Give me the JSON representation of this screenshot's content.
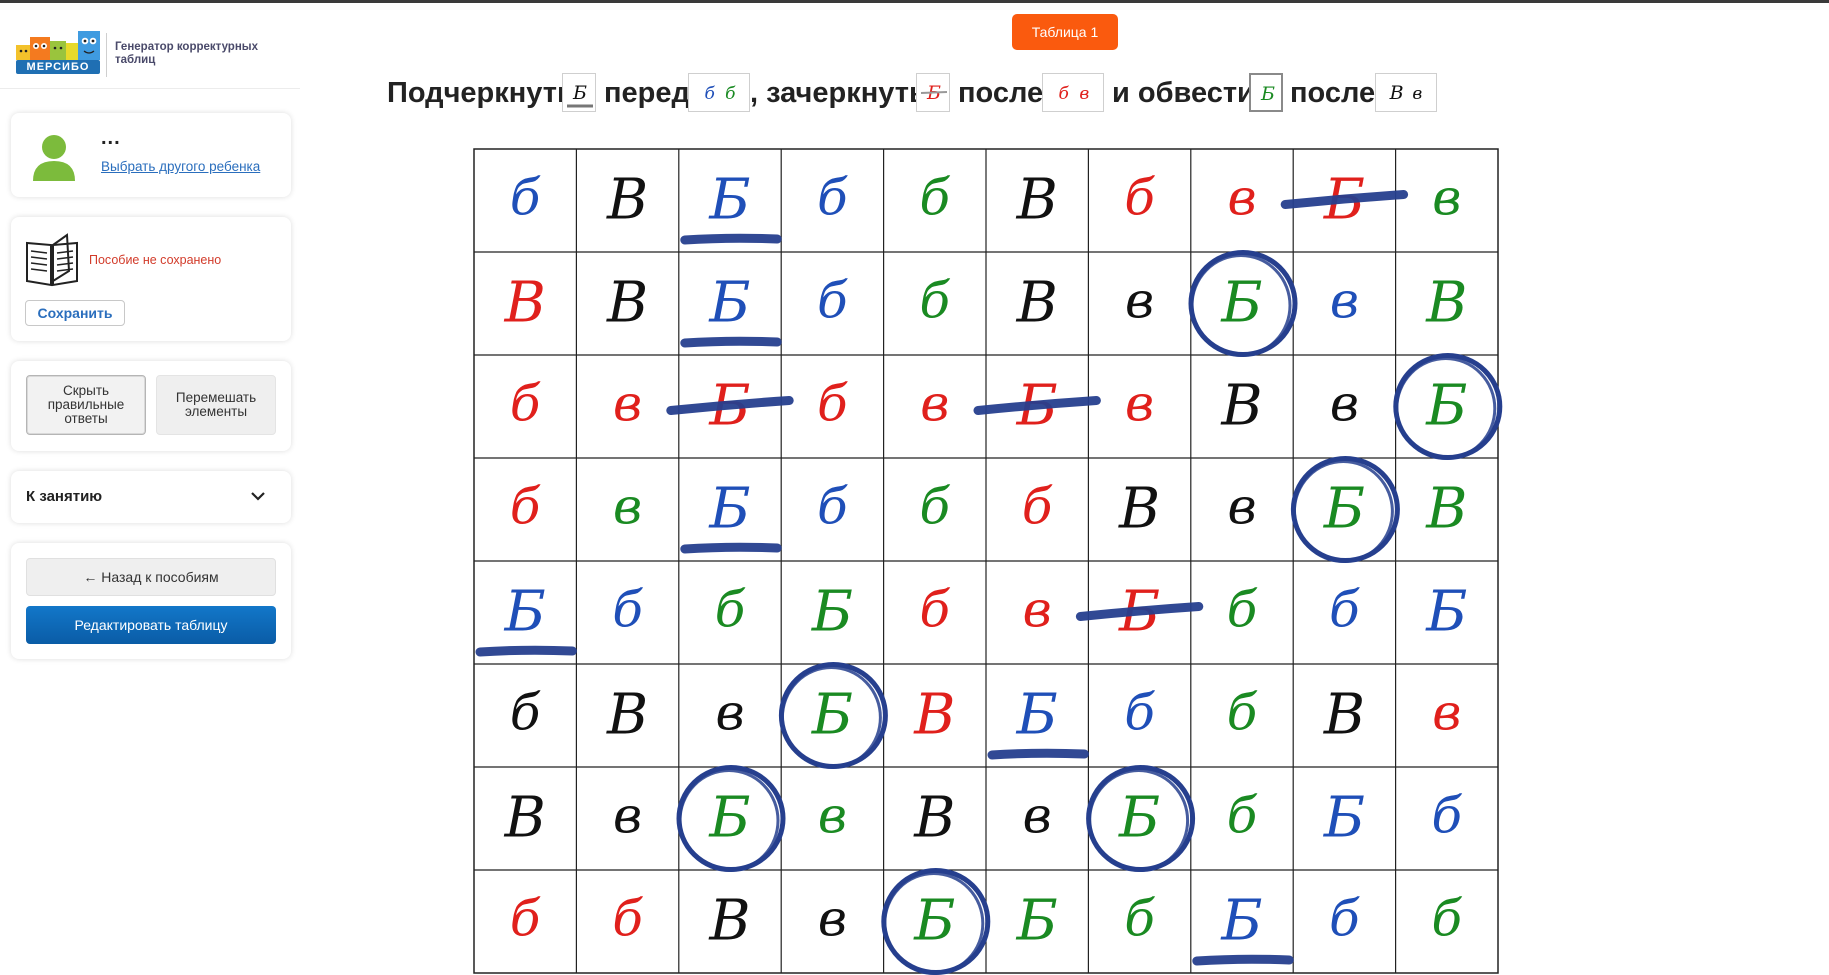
{
  "app": {
    "logo_text": "МЕРСИБО",
    "caption": "Генератор корректурных таблиц"
  },
  "child": {
    "name": "...",
    "change_link": "Выбрать другого ребенка"
  },
  "save_card": {
    "status": "Пособие не сохранено",
    "save_label": "Сохранить"
  },
  "actions": {
    "hide_answers": "Скрыть правильные ответы",
    "shuffle": "Перемешать элементы"
  },
  "lesson": {
    "label": "К занятию",
    "icon": "chevron-down-icon"
  },
  "nav": {
    "back_label": "← Назад к пособиям",
    "edit_label": "Редактировать таблицу"
  },
  "tab": {
    "label": "Таблица 1"
  },
  "instruction": {
    "words": [
      "Подчеркнуть",
      "перед",
      ", зачеркнуть",
      "после",
      "и обвести",
      "после"
    ],
    "chips": [
      {
        "letters": [
          {
            "ch": "Б",
            "color": "black"
          }
        ],
        "mark": "underline"
      },
      {
        "letters": [
          {
            "ch": "б",
            "color": "blue"
          },
          {
            "ch": "б",
            "color": "green"
          }
        ],
        "mark": "none"
      },
      {
        "letters": [
          {
            "ch": "Б",
            "color": "red"
          }
        ],
        "mark": "strike"
      },
      {
        "letters": [
          {
            "ch": "б",
            "color": "red"
          },
          {
            "ch": "в",
            "color": "red"
          }
        ],
        "mark": "none"
      },
      {
        "letters": [
          {
            "ch": "Б",
            "color": "green"
          }
        ],
        "mark": "circle"
      },
      {
        "letters": [
          {
            "ch": "В",
            "color": "black"
          },
          {
            "ch": "в",
            "color": "black"
          }
        ],
        "mark": "none"
      }
    ]
  },
  "colors": {
    "red": "#e0201c",
    "blue": "#1f4fb8",
    "green": "#1a8a22",
    "black": "#111111",
    "marker": "#263f8e",
    "accent_orange": "#fa5a0e",
    "primary_blue": "#0a6bbf"
  },
  "grid": {
    "rows": [
      [
        [
          "б",
          "blue",
          ""
        ],
        [
          "В",
          "black",
          ""
        ],
        [
          "Б",
          "blue",
          "u"
        ],
        [
          "б",
          "blue",
          ""
        ],
        [
          "б",
          "green",
          ""
        ],
        [
          "В",
          "black",
          ""
        ],
        [
          "б",
          "red",
          ""
        ],
        [
          "в",
          "red",
          ""
        ],
        [
          "Б",
          "red",
          "s"
        ],
        [
          "в",
          "green",
          ""
        ]
      ],
      [
        [
          "В",
          "red",
          ""
        ],
        [
          "В",
          "black",
          ""
        ],
        [
          "Б",
          "blue",
          "u"
        ],
        [
          "б",
          "blue",
          ""
        ],
        [
          "б",
          "green",
          ""
        ],
        [
          "В",
          "black",
          ""
        ],
        [
          "в",
          "black",
          ""
        ],
        [
          "Б",
          "green",
          "c"
        ],
        [
          "в",
          "blue",
          ""
        ],
        [
          "В",
          "green",
          ""
        ]
      ],
      [
        [
          "б",
          "red",
          ""
        ],
        [
          "в",
          "red",
          ""
        ],
        [
          "Б",
          "red",
          "s"
        ],
        [
          "б",
          "red",
          ""
        ],
        [
          "в",
          "red",
          ""
        ],
        [
          "Б",
          "red",
          "s"
        ],
        [
          "в",
          "red",
          ""
        ],
        [
          "В",
          "black",
          ""
        ],
        [
          "в",
          "black",
          ""
        ],
        [
          "Б",
          "green",
          "c"
        ]
      ],
      [
        [
          "б",
          "red",
          ""
        ],
        [
          "в",
          "green",
          ""
        ],
        [
          "Б",
          "blue",
          "u"
        ],
        [
          "б",
          "blue",
          ""
        ],
        [
          "б",
          "green",
          ""
        ],
        [
          "б",
          "red",
          ""
        ],
        [
          "В",
          "black",
          ""
        ],
        [
          "в",
          "black",
          ""
        ],
        [
          "Б",
          "green",
          "c"
        ],
        [
          "В",
          "green",
          ""
        ]
      ],
      [
        [
          "Б",
          "blue",
          "u"
        ],
        [
          "б",
          "blue",
          ""
        ],
        [
          "б",
          "green",
          ""
        ],
        [
          "Б",
          "green",
          ""
        ],
        [
          "б",
          "red",
          ""
        ],
        [
          "в",
          "red",
          ""
        ],
        [
          "Б",
          "red",
          "s"
        ],
        [
          "б",
          "green",
          ""
        ],
        [
          "б",
          "blue",
          ""
        ],
        [
          "Б",
          "blue",
          ""
        ]
      ],
      [
        [
          "б",
          "black",
          ""
        ],
        [
          "В",
          "black",
          ""
        ],
        [
          "в",
          "black",
          ""
        ],
        [
          "Б",
          "green",
          "c"
        ],
        [
          "В",
          "red",
          ""
        ],
        [
          "Б",
          "blue",
          "u"
        ],
        [
          "б",
          "blue",
          ""
        ],
        [
          "б",
          "green",
          ""
        ],
        [
          "В",
          "black",
          ""
        ],
        [
          "в",
          "red",
          ""
        ]
      ],
      [
        [
          "В",
          "black",
          ""
        ],
        [
          "в",
          "black",
          ""
        ],
        [
          "Б",
          "green",
          "c"
        ],
        [
          "в",
          "green",
          ""
        ],
        [
          "В",
          "black",
          ""
        ],
        [
          "в",
          "black",
          ""
        ],
        [
          "Б",
          "green",
          "c"
        ],
        [
          "б",
          "green",
          ""
        ],
        [
          "Б",
          "blue",
          ""
        ],
        [
          "б",
          "blue",
          ""
        ]
      ],
      [
        [
          "б",
          "red",
          ""
        ],
        [
          "б",
          "red",
          ""
        ],
        [
          "В",
          "black",
          ""
        ],
        [
          "в",
          "black",
          ""
        ],
        [
          "Б",
          "green",
          "c"
        ],
        [
          "Б",
          "green",
          ""
        ],
        [
          "б",
          "green",
          ""
        ],
        [
          "Б",
          "blue",
          "u"
        ],
        [
          "б",
          "blue",
          ""
        ],
        [
          "б",
          "green",
          ""
        ]
      ]
    ]
  }
}
